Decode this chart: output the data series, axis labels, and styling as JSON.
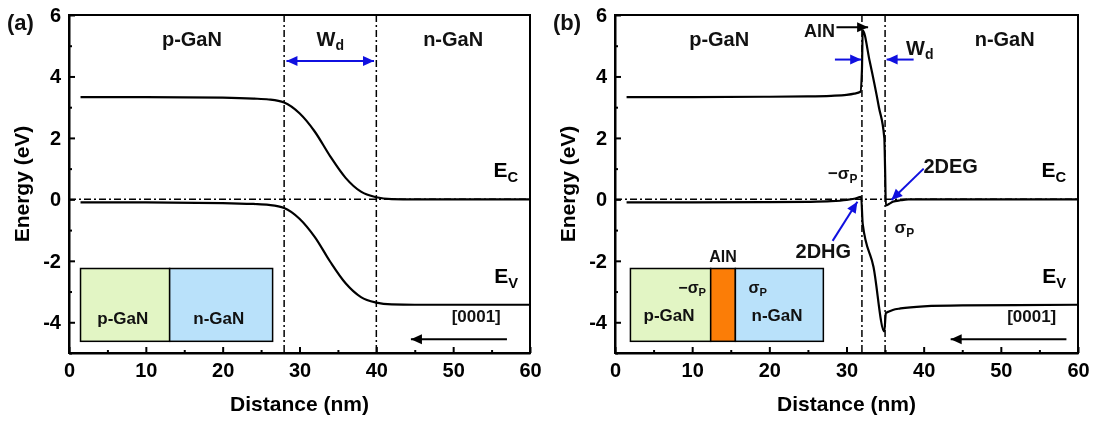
{
  "chart_data": [
    {
      "type": "line",
      "xlabel": "Distance (nm)",
      "ylabel": "Energy (eV)",
      "xlim": [
        0,
        60
      ],
      "ylim": [
        -5,
        6
      ],
      "xticks": [
        0,
        {
          "value": 5,
          "label": null
        },
        10,
        {
          "value": 15,
          "label": null
        },
        20,
        {
          "value": 25,
          "label": null
        },
        30,
        {
          "value": 35,
          "label": null
        },
        40,
        {
          "value": 45,
          "label": null
        },
        50,
        {
          "value": 55,
          "label": null
        },
        60
      ],
      "yticks": [
        {
          "value": -5,
          "label": null
        },
        -4,
        {
          "value": -3,
          "label": null
        },
        -2,
        {
          "value": -1,
          "label": null
        },
        0,
        {
          "value": 1,
          "label": null
        },
        2,
        {
          "value": 3,
          "label": null
        },
        4,
        {
          "value": 5,
          "label": null
        },
        6
      ],
      "grid": false,
      "marker": "none",
      "line_style": "solid",
      "series": [
        {
          "name": "E$_{C}$",
          "color": "#000000",
          "x": [
            1.5,
            10,
            20,
            24,
            26,
            28,
            30,
            32,
            34,
            36,
            38,
            40,
            42,
            45,
            50,
            60
          ],
          "values": [
            3.33,
            3.33,
            3.31,
            3.28,
            3.25,
            3.15,
            2.8,
            2.2,
            1.4,
            0.7,
            0.25,
            0.07,
            0.01,
            0,
            0,
            0
          ]
        },
        {
          "name": "E$_{V}$",
          "color": "#000000",
          "x": [
            1.5,
            10,
            20,
            24,
            26,
            28,
            30,
            32,
            34,
            36,
            38,
            40,
            42,
            45,
            50,
            60
          ],
          "values": [
            -0.1,
            -0.1,
            -0.12,
            -0.15,
            -0.18,
            -0.28,
            -0.63,
            -1.23,
            -2.03,
            -2.73,
            -3.18,
            -3.36,
            -3.42,
            -3.43,
            -3.43,
            -3.43
          ]
        }
      ],
      "ref_lines": [
        {
          "axis": "x",
          "value": 28,
          "color": "#000000",
          "line_style": "dashed"
        },
        {
          "axis": "x",
          "value": 40,
          "color": "#000000",
          "line_style": "dashed"
        },
        {
          "axis": "y",
          "value": 0,
          "color": "#000000",
          "line_style": "dashed"
        }
      ],
      "annotations": [
        "(a)",
        "p-GaN",
        "W$_{d}$",
        "n-GaN",
        "[0001]",
        "p-GaN",
        "n-GaN"
      ]
    },
    {
      "type": "line",
      "xlabel": "Distance (nm)",
      "ylabel": "Energy (eV)",
      "xlim": [
        0,
        60
      ],
      "ylim": [
        -5,
        6
      ],
      "xticks": [
        0,
        {
          "value": 5,
          "label": null
        },
        10,
        {
          "value": 15,
          "label": null
        },
        20,
        {
          "value": 25,
          "label": null
        },
        30,
        {
          "value": 35,
          "label": null
        },
        40,
        {
          "value": 45,
          "label": null
        },
        50,
        {
          "value": 55,
          "label": null
        },
        60
      ],
      "yticks": [
        {
          "value": -5,
          "label": null
        },
        -4,
        {
          "value": -3,
          "label": null
        },
        -2,
        {
          "value": -1,
          "label": null
        },
        0,
        {
          "value": 1,
          "label": null
        },
        2,
        {
          "value": 3,
          "label": null
        },
        4,
        {
          "value": 5,
          "label": null
        },
        6
      ],
      "grid": false,
      "marker": "none",
      "line_style": "solid",
      "series": [
        {
          "name": "E$_{C}$",
          "color": "#000000",
          "x": [
            1.5,
            10,
            20,
            25,
            28,
            30,
            31,
            31.8,
            32,
            32.1,
            33,
            34.2,
            34.9,
            35,
            35.1,
            35.5,
            36,
            37,
            38,
            40,
            60
          ],
          "values": [
            3.33,
            3.33,
            3.34,
            3.35,
            3.37,
            3.4,
            3.44,
            3.5,
            4.2,
            5.5,
            4.5,
            3.0,
            2.0,
            1.0,
            -0.2,
            -0.15,
            -0.08,
            -0.03,
            0,
            0,
            0
          ]
        },
        {
          "name": "E$_{V}$",
          "color": "#000000",
          "x": [
            1.5,
            10,
            20,
            25,
            28,
            30,
            31,
            31.9,
            32.1,
            33.5,
            34.9,
            35.1,
            35.5,
            36,
            37,
            40,
            45,
            60
          ],
          "values": [
            -0.1,
            -0.1,
            -0.09,
            -0.08,
            -0.06,
            -0.02,
            0.02,
            0.08,
            -0.8,
            -2.2,
            -4.3,
            -3.7,
            -3.65,
            -3.6,
            -3.55,
            -3.48,
            -3.45,
            -3.43
          ]
        }
      ],
      "ref_lines": [
        {
          "axis": "x",
          "value": 32,
          "color": "#000000",
          "line_style": "dashed"
        },
        {
          "axis": "x",
          "value": 35,
          "color": "#000000",
          "line_style": "dashed"
        },
        {
          "axis": "y",
          "value": 0,
          "color": "#000000",
          "line_style": "dashed"
        }
      ],
      "annotations": [
        "(b)",
        "p-GaN",
        "AlN",
        "W$_{d}$",
        "n-GaN",
        "−σ$_{P}$",
        {
          "text": "2DEG",
          "x": 35.3,
          "y": -0.15
        },
        "σ$_{P}$",
        {
          "text": "2DHG",
          "x": 31.8,
          "y": 0.05
        },
        "[0001]",
        "AlN",
        "−σ$_{P}$",
        "σ$_{P}$",
        "p-GaN",
        "n-GaN"
      ]
    }
  ]
}
